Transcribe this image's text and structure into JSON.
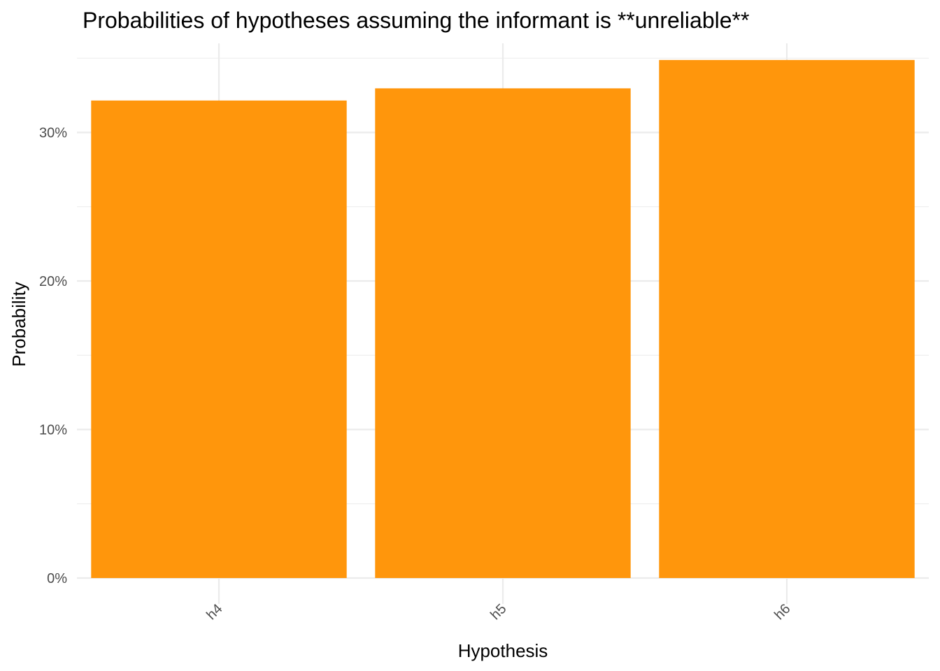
{
  "chart_data": {
    "type": "bar",
    "title": "Probabilities of hypotheses assuming the informant is **unreliable**",
    "xlabel": "Hypothesis",
    "ylabel": "Probability",
    "categories": [
      "h4",
      "h5",
      "h6"
    ],
    "values": [
      0.3215,
      0.3297,
      0.3488
    ],
    "ylim": [
      0,
      0.36
    ],
    "yticks": [
      0,
      0.1,
      0.2,
      0.3
    ],
    "ytick_labels": [
      "0%",
      "10%",
      "20%",
      "30%"
    ],
    "bar_color": "#FF960C",
    "grid": true,
    "legend": "none"
  }
}
